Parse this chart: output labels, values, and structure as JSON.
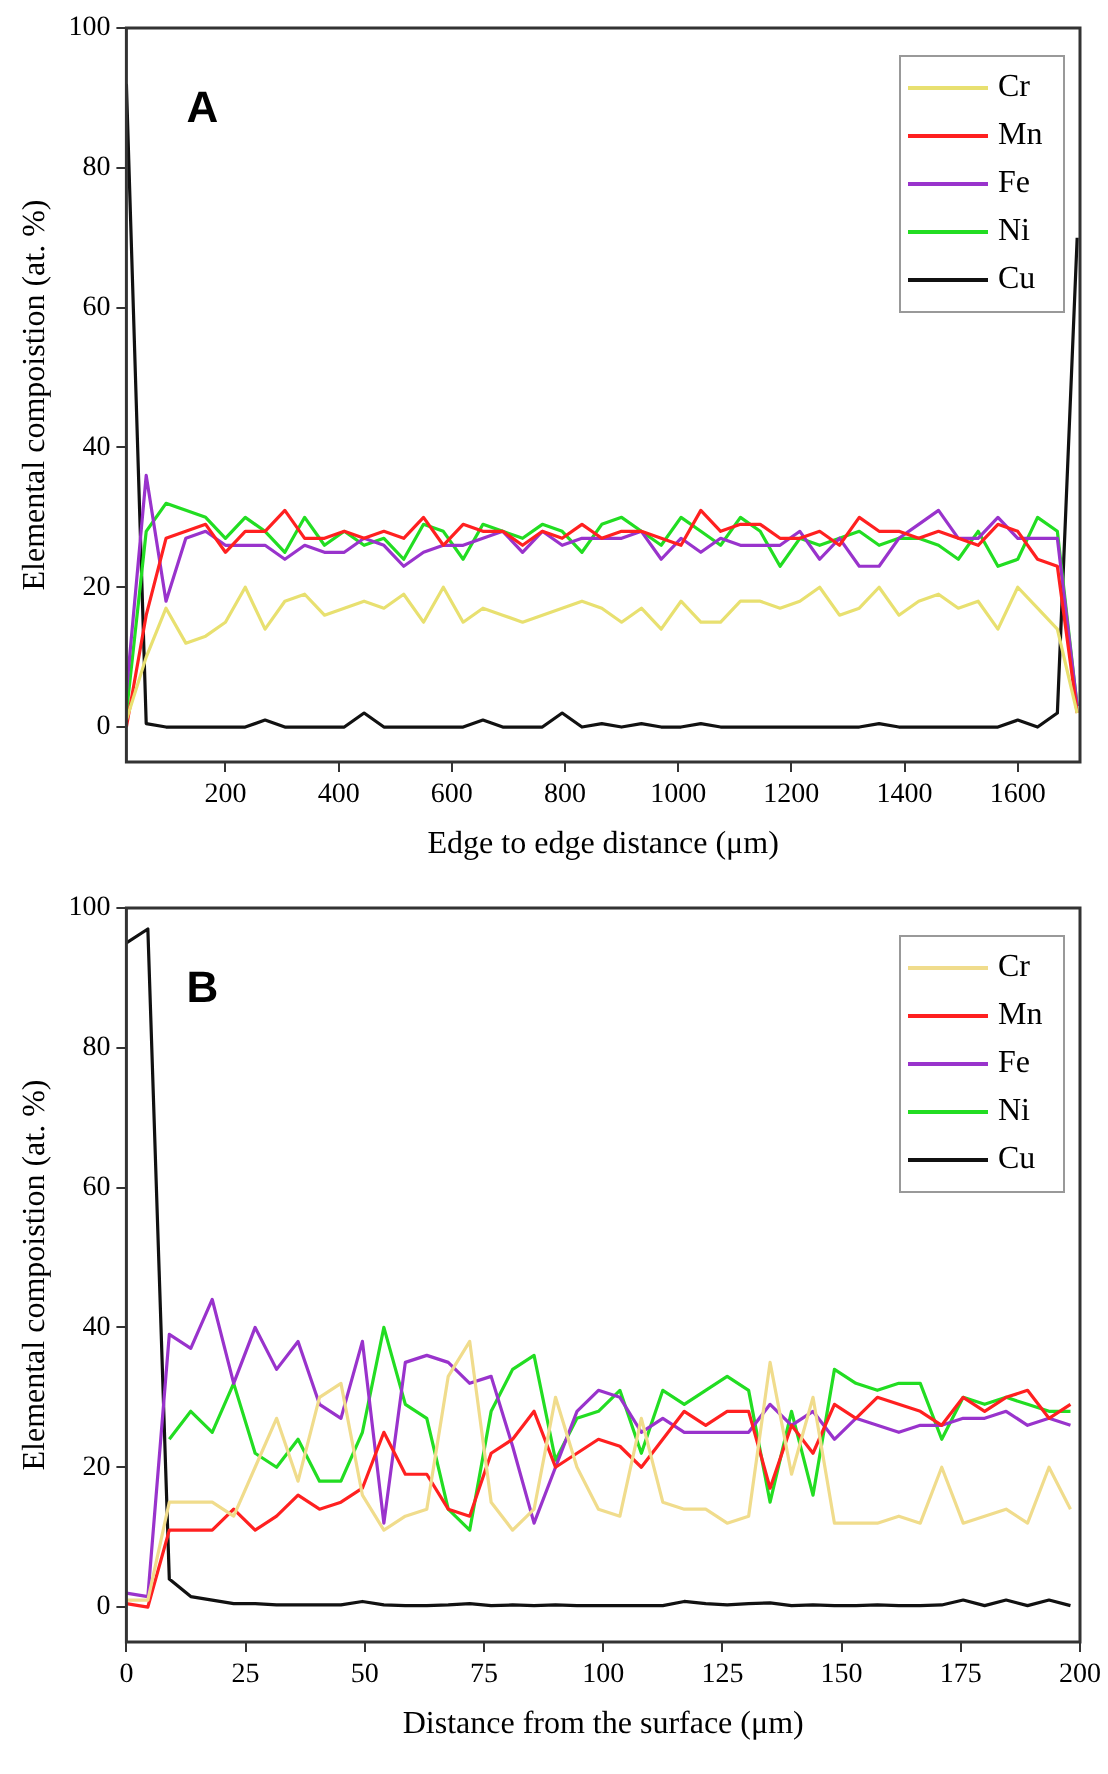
{
  "chart_data": [
    {
      "type": "line",
      "xlabel": "Edge to edge distance (μm)",
      "ylabel": "Elemental compoistion (at. %)",
      "annotations": [
        "A"
      ],
      "legend": "top right",
      "grid": false,
      "xlim": [
        25,
        1710
      ],
      "xticks": [
        200,
        400,
        600,
        800,
        1000,
        1200,
        1400,
        1600
      ],
      "ylim": [
        -5,
        100
      ],
      "yticks": [
        0,
        20,
        40,
        60,
        80,
        100
      ],
      "x": [
        25,
        60,
        95,
        130,
        165,
        200,
        235,
        270,
        305,
        340,
        375,
        410,
        445,
        480,
        515,
        550,
        585,
        620,
        655,
        690,
        725,
        760,
        795,
        830,
        865,
        900,
        935,
        970,
        1005,
        1040,
        1075,
        1110,
        1145,
        1180,
        1215,
        1250,
        1285,
        1320,
        1355,
        1390,
        1425,
        1460,
        1495,
        1530,
        1565,
        1600,
        1635,
        1670,
        1705
      ],
      "series": [
        {
          "name": "Cr",
          "color": "#e8e070",
          "values": [
            1,
            10,
            17,
            12,
            13,
            15,
            20,
            14,
            18,
            19,
            16,
            17,
            18,
            17,
            19,
            15,
            20,
            15,
            17,
            16,
            15,
            16,
            17,
            18,
            17,
            15,
            17,
            14,
            18,
            15,
            15,
            18,
            18,
            17,
            18,
            20,
            16,
            17,
            20,
            16,
            18,
            19,
            17,
            18,
            14,
            20,
            17,
            14,
            2
          ]
        },
        {
          "name": "Mn",
          "color": "#ff2020",
          "values": [
            0,
            16,
            27,
            28,
            29,
            25,
            28,
            28,
            31,
            27,
            27,
            28,
            27,
            28,
            27,
            30,
            26,
            29,
            28,
            28,
            26,
            28,
            27,
            29,
            27,
            28,
            28,
            27,
            26,
            31,
            28,
            29,
            29,
            27,
            27,
            28,
            26,
            30,
            28,
            28,
            27,
            28,
            27,
            26,
            29,
            28,
            24,
            23,
            2
          ]
        },
        {
          "name": "Fe",
          "color": "#9933cc",
          "values": [
            5,
            36,
            18,
            27,
            28,
            26,
            26,
            26,
            24,
            26,
            25,
            25,
            27,
            26,
            23,
            25,
            26,
            26,
            27,
            28,
            25,
            28,
            26,
            27,
            27,
            27,
            28,
            24,
            27,
            25,
            27,
            26,
            26,
            26,
            28,
            24,
            27,
            23,
            23,
            27,
            29,
            31,
            27,
            27,
            30,
            27,
            27,
            27,
            3
          ]
        },
        {
          "name": "Ni",
          "color": "#22dd22",
          "values": [
            2,
            28,
            32,
            31,
            30,
            27,
            30,
            28,
            25,
            30,
            26,
            28,
            26,
            27,
            24,
            29,
            28,
            24,
            29,
            28,
            27,
            29,
            28,
            25,
            29,
            30,
            28,
            26,
            30,
            28,
            26,
            30,
            28,
            23,
            27,
            26,
            27,
            28,
            26,
            27,
            27,
            26,
            24,
            28,
            23,
            24,
            30,
            28,
            3
          ]
        },
        {
          "name": "Cu",
          "color": "#111111",
          "values": [
            92,
            0.5,
            0,
            0,
            0,
            0,
            0,
            1,
            0,
            0,
            0,
            0,
            2,
            0,
            0,
            0,
            0,
            0,
            1,
            0,
            0,
            0,
            2,
            0,
            0.5,
            0,
            0.5,
            0,
            0,
            0.5,
            0,
            0,
            0,
            0,
            0,
            0,
            0,
            0,
            0.5,
            0,
            0,
            0,
            0,
            0,
            0,
            1,
            0,
            2,
            70
          ]
        }
      ]
    },
    {
      "type": "line",
      "xlabel": "Distance from the surface (μm)",
      "ylabel": "Elemental compoistion (at. %)",
      "annotations": [
        "B"
      ],
      "legend": "top right",
      "grid": false,
      "xlim": [
        0,
        200
      ],
      "xticks": [
        0,
        25,
        50,
        75,
        100,
        125,
        150,
        175,
        200
      ],
      "ylim": [
        -5,
        100
      ],
      "yticks": [
        0,
        20,
        40,
        60,
        80,
        100
      ],
      "x": [
        0,
        4.5,
        9,
        13.5,
        18,
        22.5,
        27,
        31.5,
        36,
        40.5,
        45,
        49.5,
        54,
        58.5,
        63,
        67.5,
        72,
        76.5,
        81,
        85.5,
        90,
        94.5,
        99,
        103.5,
        108,
        112.5,
        117,
        121.5,
        126,
        130.5,
        135,
        139.5,
        144,
        148.5,
        153,
        157.5,
        162,
        166.5,
        171,
        175.5,
        180,
        184.5,
        189,
        193.5,
        198
      ],
      "series": [
        {
          "name": "Cr",
          "color": "#f0dc8c",
          "values": [
            1,
            1,
            15,
            15,
            15,
            13,
            20,
            27,
            18,
            30,
            32,
            16,
            11,
            13,
            14,
            33,
            38,
            15,
            11,
            14,
            30,
            20,
            14,
            13,
            27,
            15,
            14,
            14,
            12,
            13,
            35,
            19,
            30,
            12,
            12,
            12,
            13,
            12,
            20,
            12,
            13,
            14,
            12,
            20,
            14
          ]
        },
        {
          "name": "Mn",
          "color": "#ff2020",
          "values": [
            0.5,
            0,
            11,
            11,
            11,
            14,
            11,
            13,
            16,
            14,
            15,
            17,
            25,
            19,
            19,
            14,
            13,
            22,
            24,
            28,
            20,
            22,
            24,
            23,
            20,
            24,
            28,
            26,
            28,
            28,
            17,
            26,
            22,
            29,
            27,
            30,
            29,
            28,
            26,
            30,
            28,
            30,
            31,
            27,
            29
          ]
        },
        {
          "name": "Fe",
          "color": "#9933cc",
          "values": [
            2,
            1.5,
            39,
            37,
            44,
            32,
            40,
            34,
            38,
            29,
            27,
            38,
            12,
            35,
            36,
            35,
            32,
            33,
            23,
            12,
            20,
            28,
            31,
            30,
            25,
            27,
            25,
            25,
            25,
            25,
            29,
            26,
            28,
            24,
            27,
            26,
            25,
            26,
            26,
            27,
            27,
            28,
            26,
            27,
            26
          ]
        },
        {
          "name": "Ni",
          "color": "#22dd22",
          "values": [
            null,
            null,
            24,
            28,
            25,
            32,
            22,
            20,
            24,
            18,
            18,
            25,
            40,
            29,
            27,
            14,
            11,
            28,
            34,
            36,
            21,
            27,
            28,
            31,
            22,
            31,
            29,
            31,
            33,
            31,
            15,
            28,
            16,
            34,
            32,
            31,
            32,
            32,
            24,
            30,
            29,
            30,
            29,
            28,
            28
          ]
        },
        {
          "name": "Cu",
          "color": "#111111",
          "values": [
            95,
            97,
            4,
            1.5,
            1,
            0.5,
            0.5,
            0.3,
            0.3,
            0.3,
            0.3,
            0.8,
            0.3,
            0.2,
            0.2,
            0.3,
            0.5,
            0.2,
            0.3,
            0.2,
            0.3,
            0.2,
            0.2,
            0.2,
            0.2,
            0.2,
            0.8,
            0.5,
            0.3,
            0.5,
            0.6,
            0.2,
            0.3,
            0.2,
            0.2,
            0.3,
            0.2,
            0.2,
            0.3,
            1,
            0.2,
            1,
            0.2,
            1,
            0.2
          ]
        }
      ]
    }
  ]
}
